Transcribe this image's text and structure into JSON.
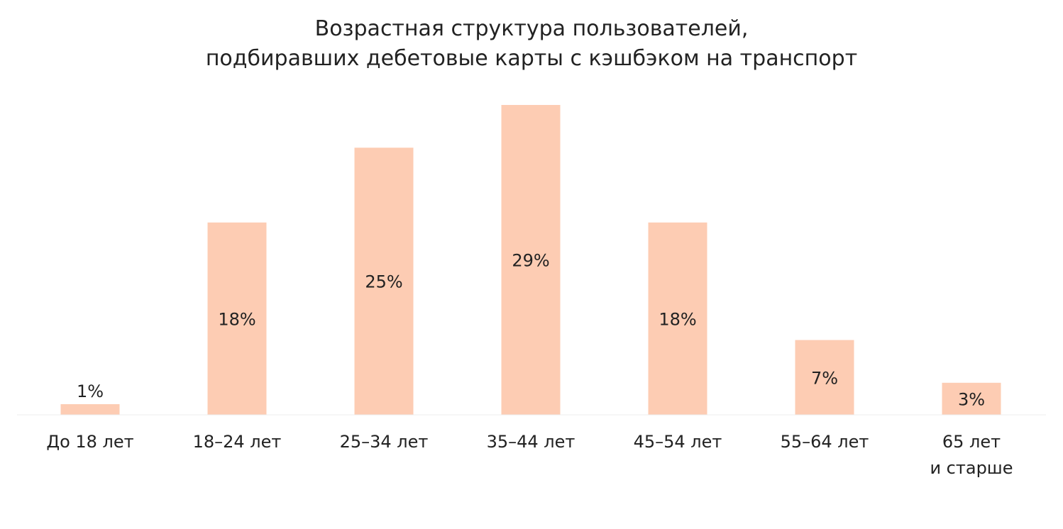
{
  "chart_data": {
    "type": "bar",
    "title": [
      "Возрастная структура пользователей,",
      "подбиравших дебетовые карты с кэшбэком на транспорт"
    ],
    "categories": [
      [
        "До 18 лет"
      ],
      [
        "18–24 лет"
      ],
      [
        "25–34 лет"
      ],
      [
        "35–44 лет"
      ],
      [
        "45–54 лет"
      ],
      [
        "55–64 лет"
      ],
      [
        "65 лет",
        "и старше"
      ]
    ],
    "values": [
      1,
      18,
      25,
      29,
      18,
      7,
      3
    ],
    "value_labels": [
      "1%",
      "18%",
      "25%",
      "29%",
      "18%",
      "7%",
      "3%"
    ],
    "ylim": [
      0,
      30
    ],
    "grid": false,
    "legend": "none",
    "bar_color": "#fdccb3",
    "baseline_color": "#ececec"
  }
}
